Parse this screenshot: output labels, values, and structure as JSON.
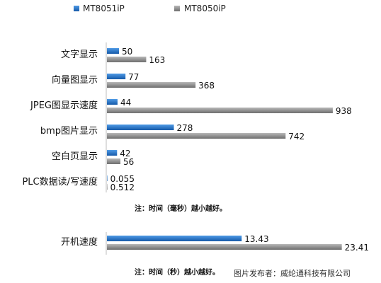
{
  "chart_data": [
    {
      "type": "bar",
      "orientation": "horizontal",
      "categories": [
        "文字显示",
        "向量图显示",
        "JPEG图显示速度",
        "bmp图片显示",
        "空白页显示",
        "PLC数据读/写速度"
      ],
      "series": [
        {
          "name": "MT8051iP",
          "values": [
            50,
            77,
            44,
            278,
            42,
            0.055
          ],
          "value_labels": [
            "50",
            "77",
            "44",
            "278",
            "42",
            "0.055"
          ],
          "color": "#1f6fc4"
        },
        {
          "name": "MT8050iP",
          "values": [
            163,
            368,
            938,
            742,
            56,
            0.512
          ],
          "value_labels": [
            "163",
            "368",
            "938",
            "742",
            "56",
            "0.512"
          ],
          "color": "#8a8a8a"
        }
      ],
      "note": "注：时间（毫秒）越小越好。",
      "xlim": [
        0,
        1000
      ],
      "grid": false,
      "legend": "top"
    },
    {
      "type": "bar",
      "orientation": "horizontal",
      "categories": [
        "开机速度"
      ],
      "series": [
        {
          "name": "MT8051iP",
          "values": [
            13.43
          ],
          "value_labels": [
            "13.43"
          ],
          "color": "#1f6fc4"
        },
        {
          "name": "MT8050iP",
          "values": [
            23.41
          ],
          "value_labels": [
            "23.41"
          ],
          "color": "#8a8a8a"
        }
      ],
      "note": "注：时间（秒）越小越好。",
      "xlim": [
        0,
        24
      ],
      "grid": false
    }
  ],
  "credit": "图片发布者：威纶通科技有限公司"
}
